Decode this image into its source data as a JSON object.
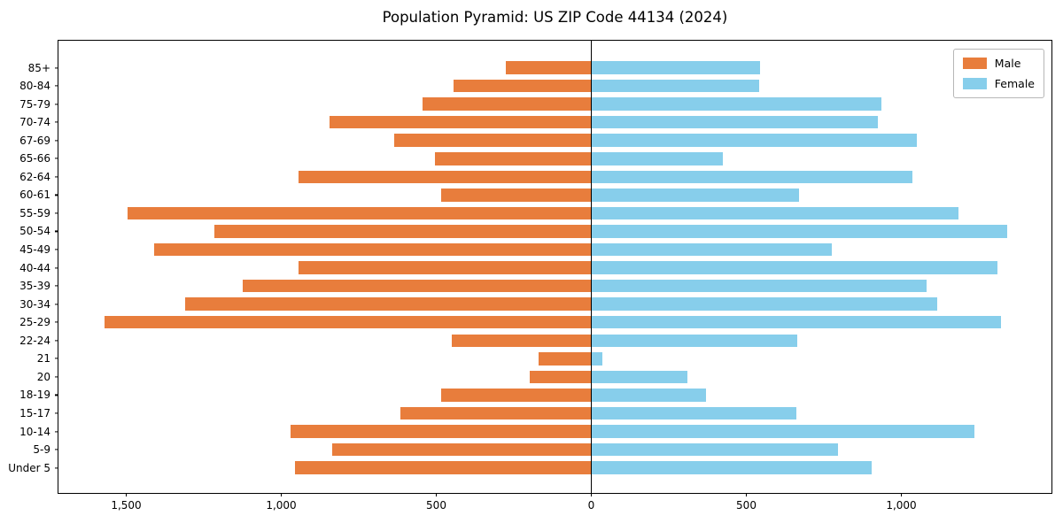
{
  "title": "Population Pyramid: US ZIP Code 44134 (2024)",
  "legend": {
    "male_label": "Male",
    "female_label": "Female"
  },
  "colors": {
    "male": "#E87D3C",
    "female": "#87CEEB",
    "axis": "#000000",
    "background": "#FFFFFF"
  },
  "chart_data": {
    "type": "bar",
    "variant": "population-pyramid",
    "title": "Population Pyramid: US ZIP Code 44134 (2024)",
    "categories": [
      "85+",
      "80-84",
      "75-79",
      "70-74",
      "67-69",
      "65-66",
      "62-64",
      "60-61",
      "55-59",
      "50-54",
      "45-49",
      "40-44",
      "35-39",
      "30-34",
      "25-29",
      "22-24",
      "21",
      "20",
      "18-19",
      "15-17",
      "10-14",
      "5-9",
      "Under 5"
    ],
    "series": [
      {
        "name": "Male",
        "side": "left",
        "color": "#E87D3C",
        "values": [
          275,
          445,
          545,
          845,
          635,
          505,
          945,
          485,
          1495,
          1215,
          1410,
          945,
          1125,
          1310,
          1570,
          450,
          170,
          200,
          485,
          615,
          970,
          835,
          955
        ]
      },
      {
        "name": "Female",
        "side": "right",
        "color": "#87CEEB",
        "values": [
          545,
          540,
          935,
          925,
          1050,
          425,
          1035,
          670,
          1185,
          1340,
          775,
          1310,
          1080,
          1115,
          1320,
          665,
          35,
          310,
          370,
          660,
          1235,
          795,
          905
        ]
      }
    ],
    "x_ticks": [
      {
        "value": -1500,
        "label": "1,500"
      },
      {
        "value": -1000,
        "label": "1,000"
      },
      {
        "value": -500,
        "label": "500"
      },
      {
        "value": 0,
        "label": "0"
      },
      {
        "value": 500,
        "label": "500"
      },
      {
        "value": 1000,
        "label": "1,000"
      }
    ],
    "xlim": [
      -1718,
      1490
    ],
    "grid": false,
    "legend_position": "upper right"
  }
}
